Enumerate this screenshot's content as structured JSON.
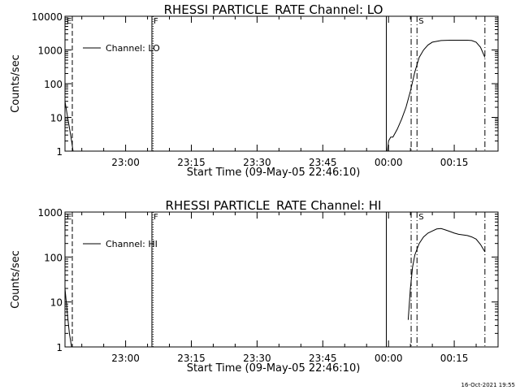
{
  "chart_data": [
    {
      "type": "line",
      "title": "RHESSI PARTICLE_RATE Channel: LO",
      "xlabel": "Start Time (09-May-05 22:46:10)",
      "ylabel": "Counts/sec",
      "yscale": "log",
      "ylim": [
        1,
        10000
      ],
      "xlim": [
        "22:46:10",
        "00:25:00"
      ],
      "x_ticks": [
        "23:00",
        "23:15",
        "23:30",
        "23:45",
        "00:00",
        "00:15"
      ],
      "y_ticks": [
        "1",
        "10",
        "100",
        "1000",
        "10000"
      ],
      "legend": {
        "label": "Channel: LO",
        "position": "top-left"
      },
      "series": [
        {
          "name": "Channel: LO",
          "segments": [
            {
              "x": [
                "22:46:10",
                "22:46:40",
                "22:47:10",
                "22:47:40",
                "22:48:00"
              ],
              "y": [
                30,
                12,
                5,
                2,
                1
              ]
            },
            {
              "x": [
                "23:59:45",
                "00:00:00",
                "00:00:30",
                "00:01:00",
                "00:02:00",
                "00:03:00",
                "00:04:00",
                "00:05:00",
                "00:06:00",
                "00:07:00",
                "00:08:00",
                "00:09:00",
                "00:10:00",
                "00:12:00",
                "00:14:00",
                "00:16:00",
                "00:18:00",
                "00:19:00",
                "00:20:00",
                "00:21:00",
                "00:22:00"
              ],
              "y": [
                1,
                2,
                2.6,
                2.6,
                4.5,
                9,
                20,
                60,
                220,
                600,
                1000,
                1400,
                1700,
                1900,
                1950,
                1950,
                1950,
                1900,
                1700,
                1200,
                600
              ]
            }
          ]
        }
      ],
      "markers": [
        {
          "label": "E",
          "time": "22:46:10",
          "style": "dashed"
        },
        {
          "label": "",
          "time": "22:47:50",
          "style": "dashed"
        },
        {
          "label": "F",
          "time": "23:06:00",
          "style": "solid"
        },
        {
          "label": "",
          "time": "23:06:15",
          "style": "dotted"
        },
        {
          "label": "",
          "time": "23:59:30",
          "style": "solid"
        },
        {
          "label": "",
          "time": "00:05:10",
          "style": "dash-dot"
        },
        {
          "label": "S",
          "time": "00:06:30",
          "style": "dash-dot"
        },
        {
          "label": "",
          "time": "00:22:00",
          "style": "dash-dot"
        }
      ]
    },
    {
      "type": "line",
      "title": "RHESSI PARTICLE_RATE Channel: HI",
      "xlabel": "Start Time (09-May-05 22:46:10)",
      "ylabel": "Counts/sec",
      "yscale": "log",
      "ylim": [
        1,
        1000
      ],
      "xlim": [
        "22:46:10",
        "00:25:00"
      ],
      "x_ticks": [
        "23:00",
        "23:15",
        "23:30",
        "23:45",
        "00:00",
        "00:15"
      ],
      "y_ticks": [
        "1",
        "10",
        "100",
        "1000"
      ],
      "legend": {
        "label": "Channel: HI",
        "position": "top-left"
      },
      "series": [
        {
          "name": "Channel: HI",
          "segments": [
            {
              "x": [
                "22:46:10",
                "22:46:40",
                "22:47:10",
                "22:47:40"
              ],
              "y": [
                20,
                6,
                2,
                1
              ]
            },
            {
              "x": [
                "00:04:30",
                "00:05:00",
                "00:05:30",
                "00:06:00",
                "00:07:00",
                "00:08:00",
                "00:09:00",
                "00:10:00",
                "00:11:00",
                "00:12:00",
                "00:13:00",
                "00:14:00",
                "00:15:00",
                "00:16:00",
                "00:17:00",
                "00:18:00",
                "00:19:00",
                "00:20:00",
                "00:21:00",
                "00:22:00"
              ],
              "y": [
                4,
                20,
                60,
                110,
                200,
                280,
                340,
                380,
                420,
                430,
                400,
                370,
                340,
                320,
                310,
                300,
                280,
                250,
                190,
                130
              ]
            }
          ]
        }
      ],
      "markers": [
        {
          "label": "E",
          "time": "22:46:10",
          "style": "dashed"
        },
        {
          "label": "",
          "time": "22:47:50",
          "style": "dashed"
        },
        {
          "label": "F",
          "time": "23:06:00",
          "style": "solid"
        },
        {
          "label": "",
          "time": "23:06:15",
          "style": "dotted"
        },
        {
          "label": "",
          "time": "23:59:30",
          "style": "solid"
        },
        {
          "label": "",
          "time": "00:05:10",
          "style": "dash-dot"
        },
        {
          "label": "S",
          "time": "00:06:30",
          "style": "dash-dot"
        },
        {
          "label": "",
          "time": "00:22:00",
          "style": "dash-dot"
        }
      ]
    }
  ],
  "footer": {
    "timestamp": "16-Oct-2021 19:55"
  }
}
